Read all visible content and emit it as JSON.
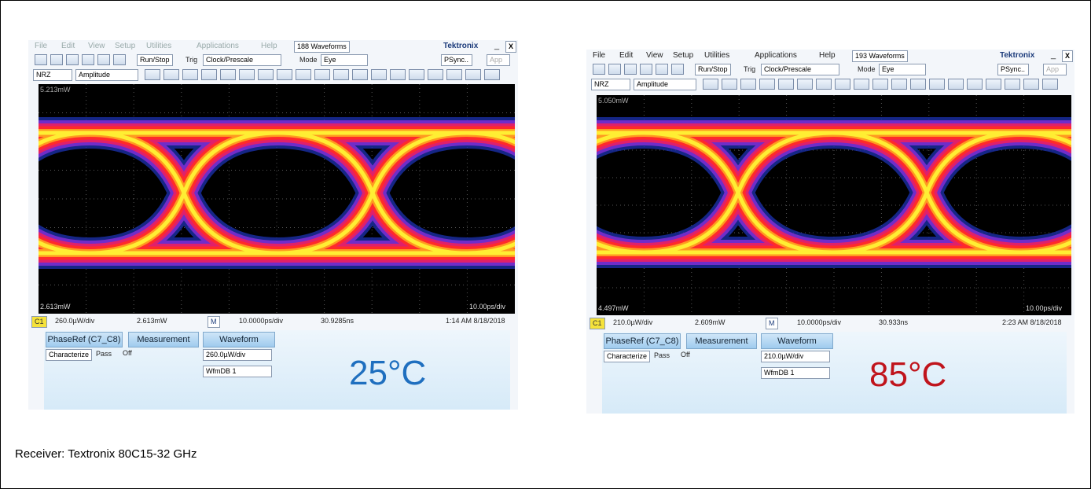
{
  "panels": [
    {
      "menu": [
        "File",
        "Edit",
        "View",
        "Setup",
        "Utilities",
        "Applications",
        "Help"
      ],
      "waveforms": "188 Waveforms",
      "brand": "Tektronix",
      "minimize": "_",
      "close": "X",
      "toolbar": {
        "run_stop": "Run/Stop",
        "trig": "Trig",
        "trig_source": "Clock/Prescale",
        "mode": "Mode",
        "mode_value": "Eye",
        "psync": "PSync..",
        "app": "App",
        "format": "NRZ",
        "scale_type": "Amplitude"
      },
      "screen": {
        "top": "5.213mW",
        "bottom": "2.613mW",
        "time_scale": "10.00ps/div"
      },
      "status": {
        "channel": "C1",
        "vertical_scale": "260.0µW/div",
        "offset": "2.613mW",
        "main": "M",
        "horizontal_scale": "10.0000ps/div",
        "position": "30.9285ns",
        "clock": "1:14 AM 8/18/2018"
      },
      "tabs": [
        "PhaseRef (C7_C8)",
        "Measurement",
        "Waveform"
      ],
      "characterize": "Characterize",
      "pass": "Pass",
      "measurement_state": "Off",
      "waveform_items": [
        "260.0µW/div",
        "WfmDB 1"
      ],
      "temperature": "25°C"
    },
    {
      "menu": [
        "File",
        "Edit",
        "View",
        "Setup",
        "Utilities",
        "Applications",
        "Help"
      ],
      "waveforms": "193 Waveforms",
      "brand": "Tektronix",
      "minimize": "_",
      "close": "X",
      "toolbar": {
        "run_stop": "Run/Stop",
        "trig": "Trig",
        "trig_source": "Clock/Prescale",
        "mode": "Mode",
        "mode_value": "Eye",
        "psync": "PSync..",
        "app": "App",
        "format": "NRZ",
        "scale_type": "Amplitude"
      },
      "screen": {
        "top": "5.050mW",
        "bottom": "4.497mW",
        "time_scale": "10.00ps/div"
      },
      "status": {
        "channel": "C1",
        "vertical_scale": "210.0µW/div",
        "offset": "2.609mW",
        "main": "M",
        "horizontal_scale": "10.0000ps/div",
        "position": "30.933ns",
        "clock": "2:23 AM 8/18/2018"
      },
      "tabs": [
        "PhaseRef (C7_C8)",
        "Measurement",
        "Waveform"
      ],
      "characterize": "Characterize",
      "pass": "Pass",
      "measurement_state": "Off",
      "waveform_items": [
        "210.0µW/div",
        "WfmDB 1"
      ],
      "temperature": "85°C"
    }
  ],
  "caption": "Receiver: Textronix 80C15-32 GHz"
}
